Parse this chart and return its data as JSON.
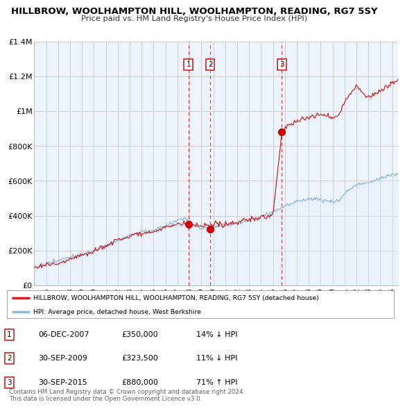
{
  "title": "HILLBROW, WOOLHAMPTON HILL, WOOLHAMPTON, READING, RG7 5SY",
  "subtitle": "Price paid vs. HM Land Registry's House Price Index (HPI)",
  "ylim": [
    0,
    1400000
  ],
  "xlim_start": 1995.0,
  "xlim_end": 2025.5,
  "ytick_labels": [
    "£0",
    "£200K",
    "£400K",
    "£600K",
    "£800K",
    "£1M",
    "£1.2M",
    "£1.4M"
  ],
  "ytick_values": [
    0,
    200000,
    400000,
    600000,
    800000,
    1000000,
    1200000,
    1400000
  ],
  "xtick_years": [
    1995,
    1996,
    1997,
    1998,
    1999,
    2000,
    2001,
    2002,
    2003,
    2004,
    2005,
    2006,
    2007,
    2008,
    2009,
    2010,
    2011,
    2012,
    2013,
    2014,
    2015,
    2016,
    2017,
    2018,
    2019,
    2020,
    2021,
    2022,
    2023,
    2024,
    2025
  ],
  "hpi_color": "#90b8d8",
  "hpi_fill_color": "#ddeeff",
  "price_color": "#cc2222",
  "dot_color": "#cc0000",
  "vline_color": "#dd3333",
  "grid_color": "#cccccc",
  "bg_color": "#eef4fb",
  "transactions": [
    {
      "date": 2007.92,
      "price": 350000,
      "label": "1"
    },
    {
      "date": 2009.75,
      "price": 323500,
      "label": "2"
    },
    {
      "date": 2015.75,
      "price": 880000,
      "label": "3"
    }
  ],
  "table_rows": [
    {
      "num": "1",
      "date": "06-DEC-2007",
      "price": "£350,000",
      "change": "14% ↓ HPI"
    },
    {
      "num": "2",
      "date": "30-SEP-2009",
      "price": "£323,500",
      "change": "11% ↓ HPI"
    },
    {
      "num": "3",
      "date": "30-SEP-2015",
      "price": "£880,000",
      "change": "71% ↑ HPI"
    }
  ],
  "legend_line1": "HILLBROW, WOOLHAMPTON HILL, WOOLHAMPTON, READING, RG7 5SY (detached house)",
  "legend_line2": "HPI: Average price, detached house, West Berkshire",
  "footer1": "Contains HM Land Registry data © Crown copyright and database right 2024.",
  "footer2": "This data is licensed under the Open Government Licence v3.0."
}
